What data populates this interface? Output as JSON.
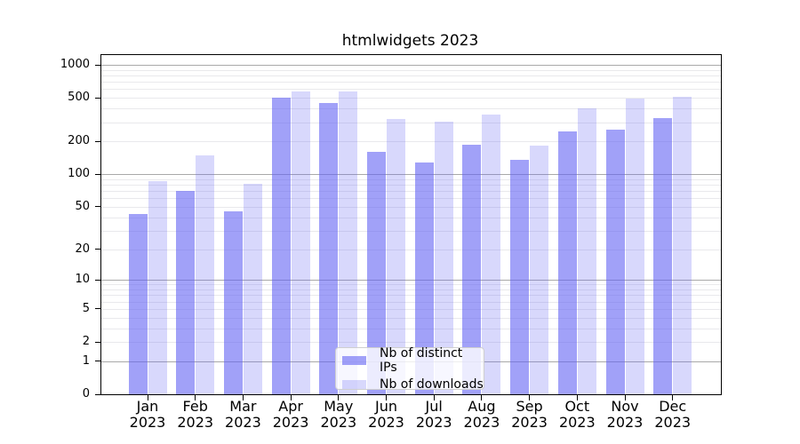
{
  "figure": {
    "title": "htmlwidgets 2023"
  },
  "colors": {
    "bar_distinct_ips": "rgba(99,99,243,0.60)",
    "bar_downloads": "rgba(99,99,243,0.25)",
    "grid_major": "#a9a9a9",
    "grid_minor": "#e9e9ec",
    "axis": "#000000",
    "legend_border": "#cfcfcf",
    "legend_background": "rgba(255,255,255,0.8)"
  },
  "chart_data": {
    "type": "bar",
    "title": "htmlwidgets 2023",
    "categories": [
      "Jan 2023",
      "Feb 2023",
      "Mar 2023",
      "Apr 2023",
      "May 2023",
      "Jun 2023",
      "Jul 2023",
      "Aug 2023",
      "Sep 2023",
      "Oct 2023",
      "Nov 2023",
      "Dec 2023"
    ],
    "series": [
      {
        "name": "Nb of distinct IPs",
        "color": "rgba(99,99,243,0.60)",
        "values": [
          43,
          70,
          45,
          500,
          450,
          160,
          127,
          185,
          135,
          245,
          257,
          325
        ]
      },
      {
        "name": "Nb of downloads",
        "color": "rgba(99,99,243,0.25)",
        "values": [
          87,
          150,
          82,
          572,
          570,
          320,
          303,
          355,
          184,
          400,
          490,
          515
        ]
      }
    ],
    "xlabel": "",
    "ylabel": "",
    "yscale": "log1p",
    "y_ticks": [
      0,
      1,
      2,
      5,
      10,
      20,
      50,
      100,
      200,
      500,
      1000
    ],
    "ylim": [
      0,
      1228
    ],
    "grid": "horizontal, minor log lines, darker at decades",
    "legend_position": "lower center inside plot"
  }
}
